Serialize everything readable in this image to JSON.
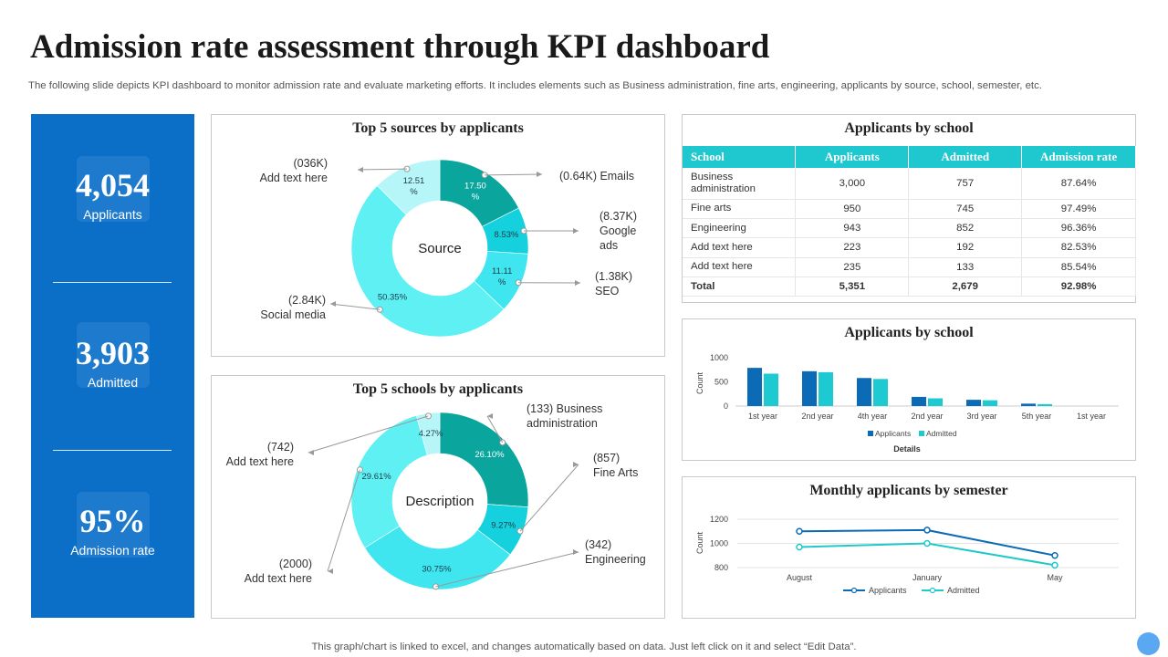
{
  "header": {
    "title": "Admission rate assessment through KPI dashboard",
    "subtitle": "The following slide depicts KPI dashboard to monitor admission rate and evaluate marketing efforts. It includes elements such as Business administration, fine arts, engineering, applicants by source, school, semester, etc."
  },
  "kpis": [
    {
      "value": "4,054",
      "label": "Applicants",
      "icon": "gear-people-icon"
    },
    {
      "value": "3,903",
      "label": "Admitted",
      "icon": "document-check-icon"
    },
    {
      "value": "95%",
      "label": "Admission rate",
      "icon": "clipboard-check-icon"
    }
  ],
  "colors": {
    "kpi_bg": "#0b6fc8",
    "teal_dark": "#0aa59d",
    "teal": "#14d1dd",
    "cyan": "#3fe6ef",
    "cyan_light": "#5ff0f4",
    "pale": "#b6f6f9",
    "bar_blue": "#0b6bb7",
    "bar_teal": "#1dcad2",
    "line_blue": "#0b6bb7",
    "line_teal": "#1dc9c9"
  },
  "chart_data": [
    {
      "id": "sources",
      "type": "pie",
      "title": "Top 5 sources by applicants",
      "center_label": "Source",
      "slices": [
        {
          "name": "Emails",
          "value": 17.5,
          "label": "17.50 %",
          "callout": [
            "(0.64K) Emails"
          ]
        },
        {
          "name": "Google ads",
          "value": 8.53,
          "label": "8.53%",
          "callout": [
            "(8.37K)",
            "Google",
            "ads"
          ]
        },
        {
          "name": "SEO",
          "value": 11.11,
          "label": "11.11 %",
          "callout": [
            "(1.38K)",
            "SEO"
          ]
        },
        {
          "name": "Social media",
          "value": 50.35,
          "label": "50.35%",
          "callout": [
            "(2.84K)",
            "Social media"
          ]
        },
        {
          "name": "Add text here",
          "value": 12.51,
          "label": "12.51 %",
          "callout": [
            "(036K)",
            "Add text here"
          ]
        }
      ]
    },
    {
      "id": "schools_donut",
      "type": "pie",
      "title": "Top 5 schools by applicants",
      "center_label": "Description",
      "slices": [
        {
          "name": "Business administration",
          "value": 26.1,
          "label": "26.10%",
          "callout": [
            "(133) Business",
            "administration"
          ]
        },
        {
          "name": "Fine Arts",
          "value": 9.27,
          "label": "9.27%",
          "callout": [
            "(857)",
            "Fine Arts"
          ]
        },
        {
          "name": "Engineering",
          "value": 30.75,
          "label": "30.75%",
          "callout": [
            "(342)",
            "Engineering"
          ]
        },
        {
          "name": "Add text here 2000",
          "value": 29.61,
          "label": "29.61%",
          "callout": [
            "(2000)",
            "Add text here"
          ]
        },
        {
          "name": "Add text here 742",
          "value": 4.27,
          "label": "4.27%",
          "callout": [
            "(742)",
            "Add text here"
          ]
        }
      ]
    },
    {
      "id": "school_table",
      "type": "table",
      "title": "Applicants by school",
      "columns": [
        "School",
        "Applicants",
        "Admitted",
        "Admission rate"
      ],
      "rows": [
        [
          "Business administration",
          "3,000",
          "757",
          "87.64%"
        ],
        [
          "Fine arts",
          "950",
          "745",
          "97.49%"
        ],
        [
          "Engineering",
          "943",
          "852",
          "96.36%"
        ],
        [
          "Add text here",
          "223",
          "192",
          "82.53%"
        ],
        [
          "Add text here",
          "235",
          "133",
          "85.54%"
        ]
      ],
      "total": [
        "Total",
        "5,351",
        "2,679",
        "92.98%"
      ]
    },
    {
      "id": "school_bars",
      "type": "bar",
      "title": "Applicants by school",
      "categories": [
        "1st year",
        "2nd year",
        "4th year",
        "2nd year",
        "3rd year",
        "5th year",
        "1st year"
      ],
      "series": [
        {
          "name": "Applicants",
          "values": [
            790,
            720,
            580,
            190,
            130,
            50,
            0
          ]
        },
        {
          "name": "Admitted",
          "values": [
            670,
            700,
            560,
            160,
            120,
            40,
            0
          ]
        }
      ],
      "xlabel": "Details",
      "ylabel": "Count",
      "ylim": [
        0,
        1000
      ],
      "yticks": [
        0,
        500,
        1000
      ]
    },
    {
      "id": "semester_lines",
      "type": "line",
      "title": "Monthly applicants by semester",
      "categories": [
        "August",
        "January",
        "May"
      ],
      "series": [
        {
          "name": "Applicants",
          "values": [
            1100,
            1110,
            900
          ]
        },
        {
          "name": "Admitted",
          "values": [
            970,
            1000,
            820
          ]
        }
      ],
      "ylabel": "Count",
      "ylim": [
        800,
        1200
      ],
      "yticks": [
        800,
        1000,
        1200
      ]
    }
  ],
  "footer": "This graph/chart is linked to excel, and changes automatically based on data. Just left click on it and select “Edit Data”."
}
